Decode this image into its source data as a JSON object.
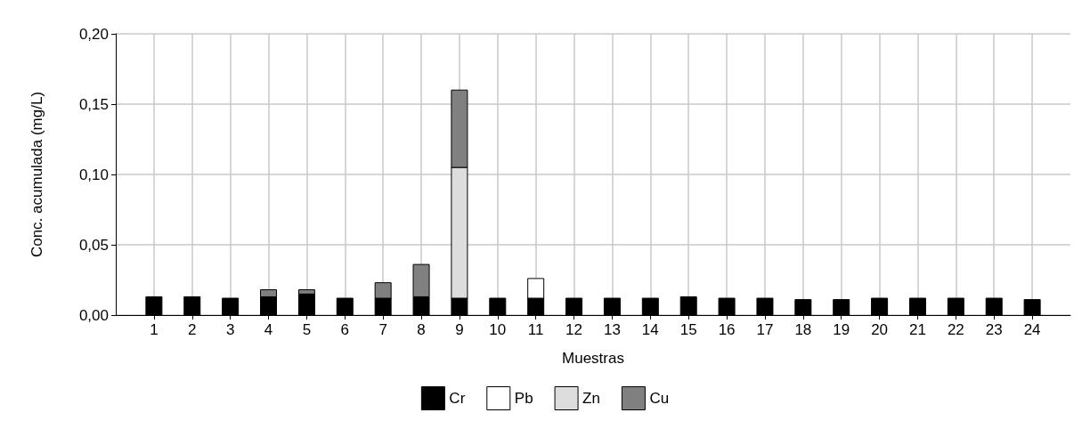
{
  "chart_data": {
    "type": "bar",
    "stacked": true,
    "xlabel": "Muestras",
    "ylabel": "Conc. acumulada (mg/L)",
    "x": [
      1,
      2,
      3,
      4,
      5,
      6,
      7,
      8,
      9,
      10,
      11,
      12,
      13,
      14,
      15,
      16,
      17,
      18,
      19,
      20,
      21,
      22,
      23,
      24
    ],
    "xlim": [
      0,
      25
    ],
    "xticks": [
      1,
      2,
      3,
      4,
      5,
      6,
      7,
      8,
      9,
      10,
      11,
      12,
      13,
      14,
      15,
      16,
      17,
      18,
      19,
      20,
      21,
      22,
      23,
      24
    ],
    "ylim": [
      0,
      0.2
    ],
    "yticks": [
      {
        "value": 0,
        "label": "0,00"
      },
      {
        "value": 0.05,
        "label": "0,05"
      },
      {
        "value": 0.1,
        "label": "0,10"
      },
      {
        "value": 0.15,
        "label": "0,15"
      },
      {
        "value": 0.2,
        "label": "0,20"
      }
    ],
    "grid": true,
    "legend": "bottom",
    "series": [
      {
        "name": "Cr",
        "color": "#000000",
        "values": [
          0.013,
          0.013,
          0.012,
          0.013,
          0.015,
          0.012,
          0.012,
          0.013,
          0.012,
          0.012,
          0.012,
          0.012,
          0.012,
          0.012,
          0.013,
          0.012,
          0.012,
          0.011,
          0.011,
          0.012,
          0.012,
          0.012,
          0.012,
          0.011
        ]
      },
      {
        "name": "Pb",
        "color": "#ffffff",
        "values": [
          null,
          null,
          null,
          null,
          null,
          null,
          null,
          null,
          null,
          null,
          0.014,
          null,
          null,
          null,
          null,
          null,
          null,
          null,
          null,
          null,
          null,
          null,
          null,
          null
        ]
      },
      {
        "name": "Zn",
        "color": "#dddddd",
        "values": [
          null,
          null,
          null,
          null,
          null,
          null,
          null,
          null,
          0.093,
          null,
          null,
          null,
          null,
          null,
          null,
          null,
          null,
          null,
          null,
          null,
          null,
          null,
          null,
          null
        ]
      },
      {
        "name": "Cu",
        "color": "#808080",
        "values": [
          null,
          null,
          null,
          0.005,
          0.003,
          null,
          0.011,
          0.023,
          0.055,
          null,
          null,
          null,
          null,
          null,
          null,
          null,
          null,
          null,
          null,
          null,
          null,
          null,
          null,
          null
        ]
      }
    ]
  }
}
